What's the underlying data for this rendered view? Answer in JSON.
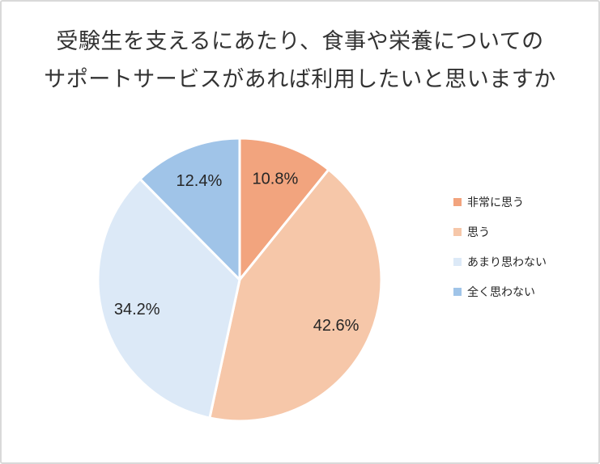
{
  "chart_data": {
    "type": "pie",
    "title": "受験生を支えるにあたり、食事や栄養についてのサポートサービスがあれば利用したいと思いますか",
    "title_lines": [
      "受験生を支えるにあたり、食事や栄養についての",
      "サポートサービスがあれば利用したいと思いますか"
    ],
    "categories": [
      "非常に思う",
      "思う",
      "あまり思わない",
      "全く思わない"
    ],
    "values": [
      10.8,
      42.6,
      34.2,
      12.4
    ],
    "data_labels": [
      "10.8%",
      "42.6%",
      "34.2%",
      "12.4%"
    ],
    "colors": [
      "#F2A47E",
      "#F6C7A9",
      "#DCE9F7",
      "#A0C4E8"
    ],
    "slice_stroke": "#FFFFFF",
    "start_angle_deg": 0,
    "direction": "clockwise",
    "legend_position": "right",
    "label_color": "#262626",
    "title_color": "#333333",
    "frame_border_color": "#D9D9D9"
  }
}
